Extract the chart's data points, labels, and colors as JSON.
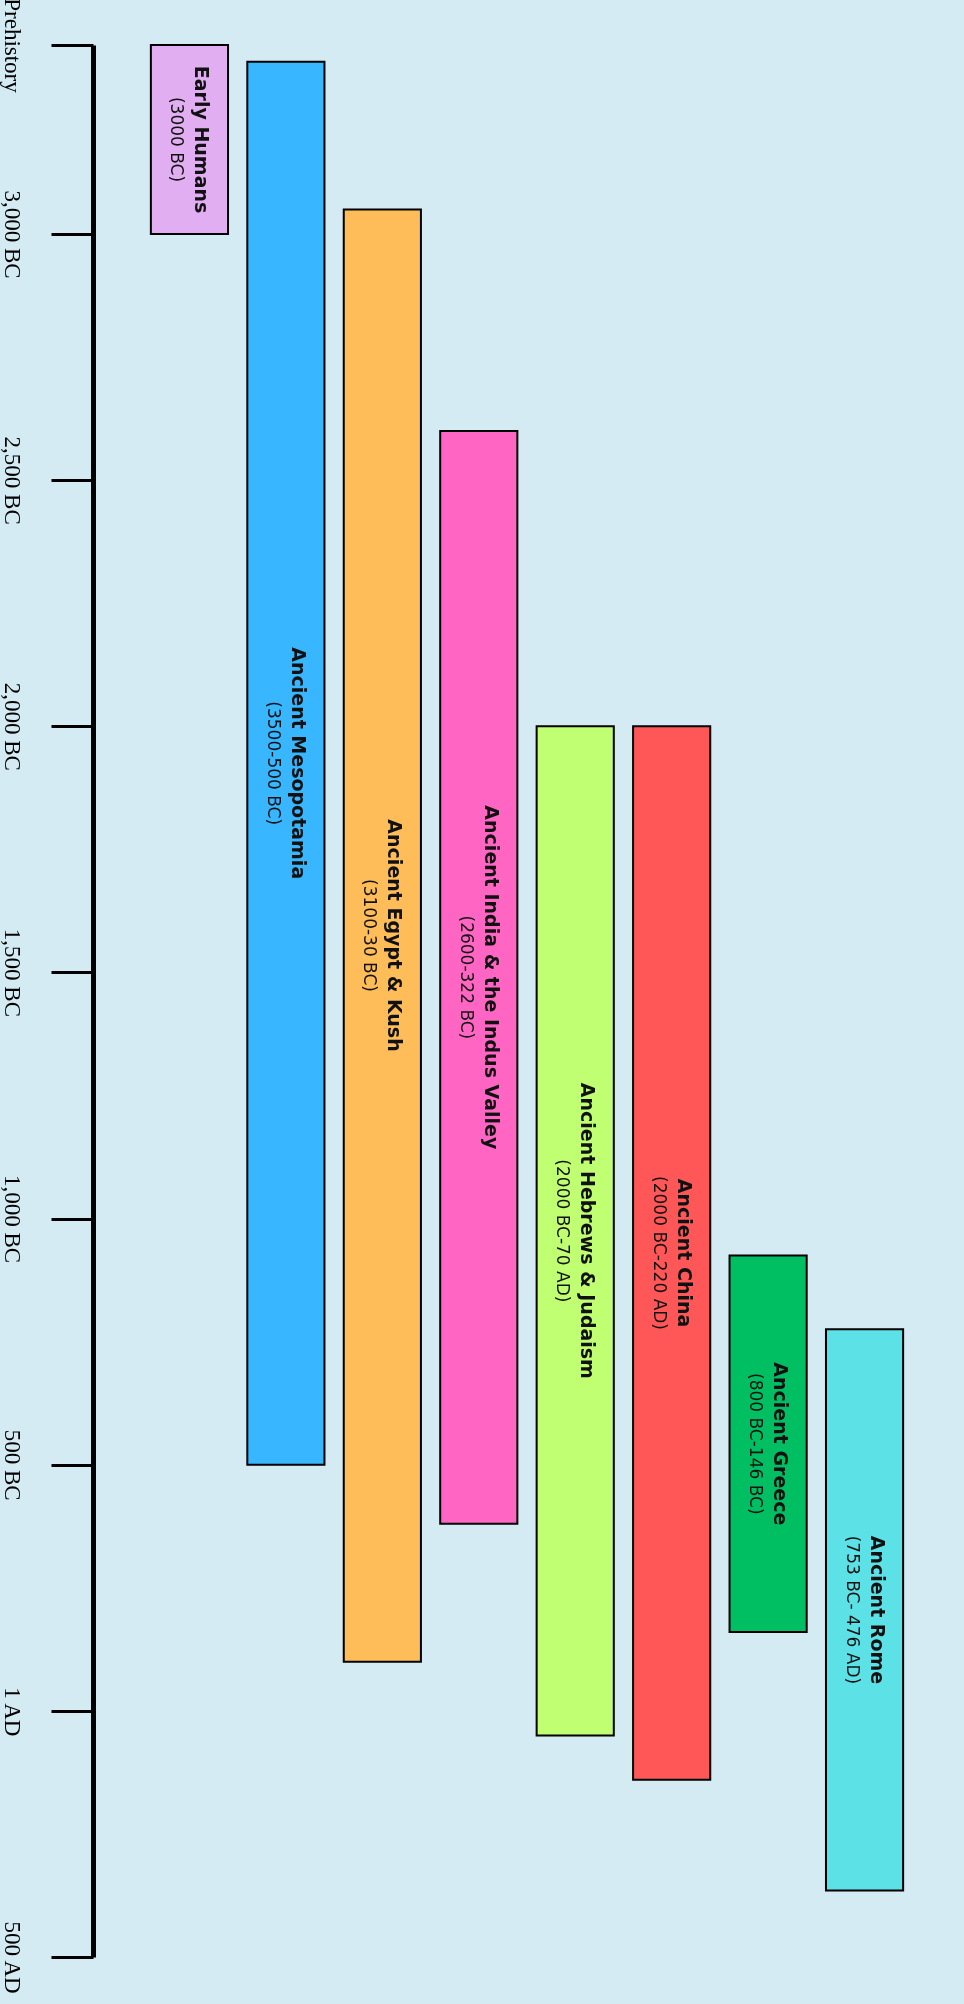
{
  "chart_data": {
    "type": "bar",
    "categories": [
      "Early Humans",
      "Ancient Mesopotamia",
      "Ancient Egypt & Kush",
      "Ancient India & the Indus Valley",
      "Ancient Hebrews & Judaism",
      "Ancient China",
      "Ancient Greece",
      "Ancient Rome"
    ],
    "base": [
      -3384,
      -3350,
      -3050,
      -2600,
      -2000,
      -2000,
      -925,
      -775
    ],
    "values": [
      384,
      2850,
      2950,
      2220,
      2050,
      2140,
      765,
      1140
    ],
    "colors": [
      "#e2aef2",
      "#38b6ff",
      "#ffbd59",
      "#ff66c4",
      "#c1ff72",
      "#ff5757",
      "#00bf63",
      "#5ce1e6"
    ],
    "value_labels": [
      "(3000 BC)",
      "(3500-500 BC)",
      "(3100-30 BC)",
      "(2600-322 BC)",
      "(2000 BC-70 AD)",
      "(2000 BC-220 AD)",
      "(800 BC-146 BC)",
      "(753 BC- 476 AD)"
    ],
    "ylim": [
      500,
      -3384
    ],
    "yticks": [
      {
        "value": -3384,
        "label": "Prehistory"
      },
      {
        "value": -3000,
        "label": "3,000 BC"
      },
      {
        "value": -2500,
        "label": "2,500 BC"
      },
      {
        "value": -2000,
        "label": "2,000 BC"
      },
      {
        "value": -1500,
        "label": "1,500 BC"
      },
      {
        "value": -1000,
        "label": "1,000 BC"
      },
      {
        "value": -500,
        "label": "500 BC"
      },
      {
        "value": 1,
        "label": "1 AD"
      },
      {
        "value": 500,
        "label": "500 AD"
      }
    ],
    "tick_labels": "y"
  }
}
